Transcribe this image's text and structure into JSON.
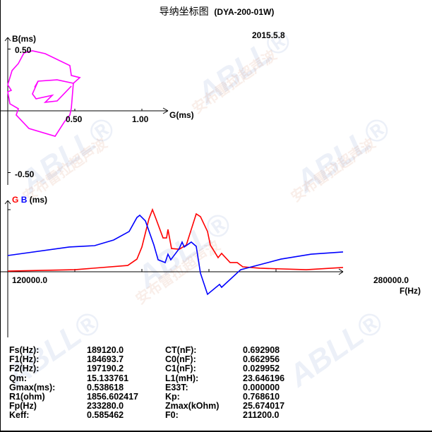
{
  "title": "导纳坐标图",
  "model": "(DYA-200-01W)",
  "date": "2015.5.8",
  "watermark": {
    "brand": "ABLL",
    "brand_cn": "安布雷拉超声波",
    "mark": "®"
  },
  "colors": {
    "admittance": "#ff00ff",
    "G": "#ff0000",
    "B": "#0000ff"
  },
  "chart_data": [
    {
      "type": "line",
      "title": "导纳坐标图",
      "xlabel": "G(ms)",
      "ylabel": "B(ms)",
      "x_ticks": [
        "0.50",
        "1.00"
      ],
      "y_ticks": [
        "0.50",
        "-0.50"
      ],
      "xlim": [
        0,
        1.2
      ],
      "ylim": [
        -0.5,
        0.5
      ],
      "series": [
        {
          "color": "#ff00ff",
          "points": [
            [
              0.121,
              0.469
            ],
            [
              0.184,
              0.486
            ],
            [
              0.279,
              0.463
            ],
            [
              0.463,
              0.366
            ],
            [
              0.474,
              0.286
            ],
            [
              0.537,
              0.269
            ],
            [
              0.489,
              0.223
            ],
            [
              0.474,
              0.023
            ],
            [
              0.463,
              -0.034
            ],
            [
              0.421,
              -0.091
            ],
            [
              0.353,
              -0.206
            ],
            [
              0.158,
              -0.143
            ],
            [
              0.063,
              -0.034
            ],
            [
              0.079,
              0.017
            ],
            [
              0.016,
              0.057
            ],
            [
              0,
              0.154
            ],
            [
              0.026,
              0.166
            ],
            [
              0,
              0.211
            ],
            [
              0.032,
              0.326
            ],
            [
              0.079,
              0.383
            ],
            [
              0.121,
              0.469
            ]
          ]
        },
        {
          "color": "#ff00ff",
          "points": [
            [
              0.489,
              0.223
            ],
            [
              0.368,
              0.251
            ],
            [
              0.226,
              0.24
            ],
            [
              0.184,
              0.137
            ],
            [
              0.211,
              0.097
            ],
            [
              0.332,
              0.126
            ],
            [
              0.279,
              0.069
            ],
            [
              0.368,
              0.08
            ],
            [
              0.474,
              0.2
            ]
          ]
        },
        {
          "color": "#ff00ff",
          "points": [
            [
              0.226,
              0.24
            ],
            [
              0.2,
              0.19
            ]
          ]
        }
      ]
    },
    {
      "type": "line",
      "ylabel_parts": [
        "G",
        "B",
        "(ms)"
      ],
      "xlabel": "F(Hz)",
      "x_tick_labels": [
        "120000.0",
        "280000.0"
      ],
      "xlim": [
        120000,
        280000
      ],
      "ylim": [
        -0.57,
        0.6
      ],
      "series": [
        {
          "name": "G",
          "color": "#ff0000",
          "points": [
            [
              120000,
              0.006
            ],
            [
              152000,
              0.018
            ],
            [
              177260,
              0.055
            ],
            [
              181640,
              0.11
            ],
            [
              184000,
              0.215
            ],
            [
              187370,
              0.46
            ],
            [
              189050,
              0.54
            ],
            [
              190730,
              0.46
            ],
            [
              194100,
              0.294
            ],
            [
              195780,
              0.294
            ],
            [
              196450,
              0.368
            ],
            [
              198140,
              0.202
            ],
            [
              201840,
              0.196
            ],
            [
              205210,
              0.233
            ],
            [
              209930,
              0.503
            ],
            [
              211950,
              0.479
            ],
            [
              215320,
              0.35
            ],
            [
              216660,
              0.233
            ],
            [
              220370,
              0.123
            ],
            [
              222050,
              0.16
            ],
            [
              226100,
              0.08
            ],
            [
              229470,
              0.08
            ],
            [
              232160,
              0.043
            ],
            [
              240240,
              0.031
            ],
            [
              262470,
              0.018
            ],
            [
              280000,
              0.037
            ]
          ]
        },
        {
          "name": "B",
          "color": "#0000ff",
          "points": [
            [
              120000,
              0.141
            ],
            [
              149300,
              0.215
            ],
            [
              161430,
              0.227
            ],
            [
              170520,
              0.276
            ],
            [
              177930,
              0.35
            ],
            [
              181640,
              0.472
            ],
            [
              182980,
              0.491
            ],
            [
              185680,
              0.442
            ],
            [
              189720,
              0.233
            ],
            [
              191740,
              0.104
            ],
            [
              195110,
              0.08
            ],
            [
              196450,
              0.153
            ],
            [
              197800,
              0.104
            ],
            [
              201840,
              0.202
            ],
            [
              203190,
              0.258
            ],
            [
              204200,
              0.215
            ],
            [
              207570,
              0.258
            ],
            [
              209930,
              0.221
            ],
            [
              211950,
              -0.012
            ],
            [
              215320,
              -0.196
            ],
            [
              221050,
              -0.11
            ],
            [
              222050,
              -0.135
            ],
            [
              231140,
              0.018
            ],
            [
              250340,
              0.11
            ],
            [
              264820,
              0.153
            ],
            [
              280000,
              0.172
            ]
          ]
        }
      ]
    }
  ],
  "params": [
    [
      "Fs(Hz):",
      "189120.0",
      "CT(nF):",
      "0.692908"
    ],
    [
      "F1(Hz):",
      "184693.7",
      "C0(nF):",
      "0.662956"
    ],
    [
      "F2(Hz):",
      "197190.2",
      "C1(nF):",
      "0.029952"
    ],
    [
      "Qm:",
      "15.133761",
      "L1(mH):",
      "23.646196"
    ],
    [
      "Gmax(ms):",
      "0.538618",
      "E33T:",
      "0.000000"
    ],
    [
      "R1(ohm)",
      "1856.602417",
      "Kp:",
      "0.768610"
    ],
    [
      "Fp(Hz)",
      "233280.0",
      "Zmax(kOhm)",
      "25.674017"
    ],
    [
      "Keff:",
      "0.585462",
      "F0:",
      "211200.0"
    ]
  ]
}
